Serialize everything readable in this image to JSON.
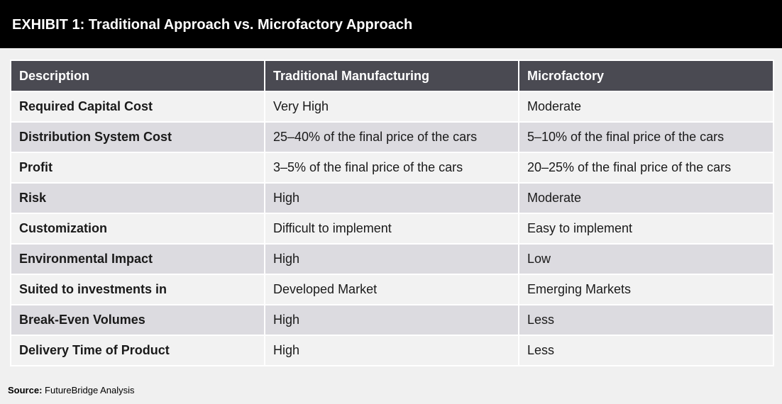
{
  "header": {
    "title": "EXHIBIT 1: Traditional Approach vs. Microfactory Approach"
  },
  "table": {
    "columns": [
      "Description",
      "Traditional Manufacturing",
      "Microfactory"
    ],
    "rows": [
      [
        "Required Capital Cost",
        "Very High",
        "Moderate"
      ],
      [
        "Distribution System Cost",
        "25–40% of the final price of the cars",
        "5–10% of the final price of the cars"
      ],
      [
        "Profit",
        "3–5% of the final price of the cars",
        "20–25% of the final price of the cars"
      ],
      [
        "Risk",
        "High",
        "Moderate"
      ],
      [
        "Customization",
        "Difficult to implement",
        "Easy to implement"
      ],
      [
        "Environmental Impact",
        "High",
        "Low"
      ],
      [
        "Suited to investments in",
        "Developed Market",
        "Emerging Markets"
      ],
      [
        "Break-Even Volumes",
        "High",
        "Less"
      ],
      [
        "Delivery Time of Product",
        "High",
        "Less"
      ]
    ]
  },
  "source": {
    "label": "Source:",
    "text": "FutureBridge Analysis"
  },
  "colors": {
    "header_bg": "#000000",
    "table_header_bg": "#4a4a52",
    "row_light": "#f2f2f2",
    "row_dark": "#dcdbe0"
  }
}
